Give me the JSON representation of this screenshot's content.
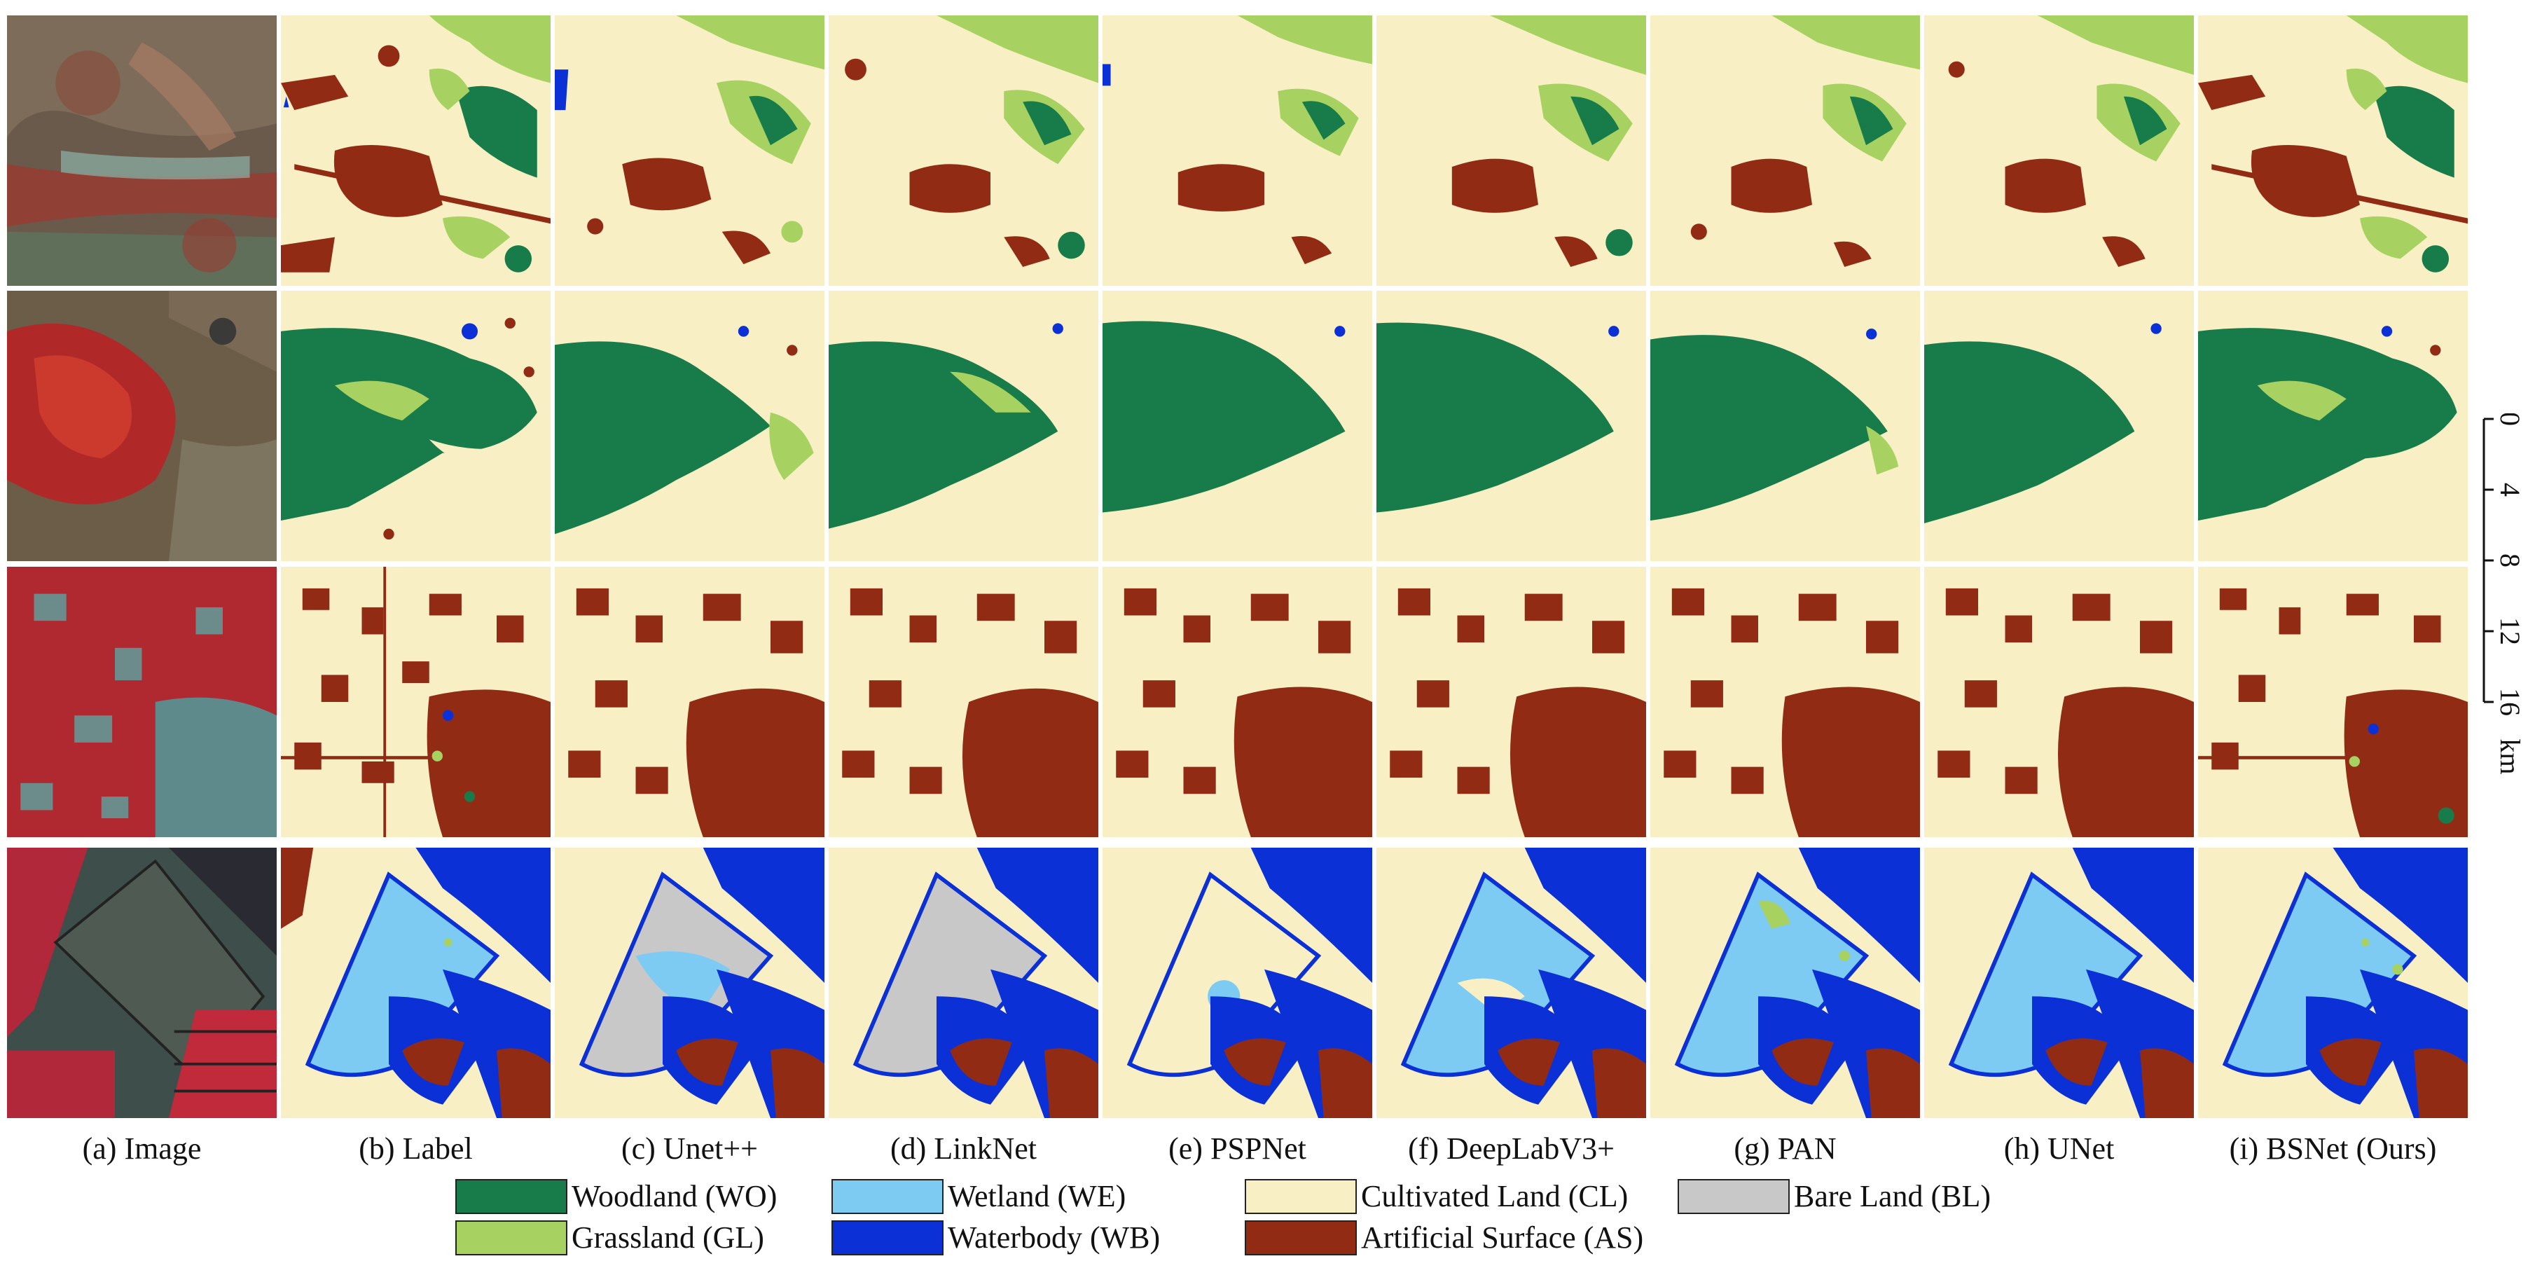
{
  "figure": {
    "column_labels": [
      "(a) Image",
      "(b) Label",
      "(c) Unet++",
      "(d) LinkNet",
      "(e) PSPNet",
      "(f) DeepLabV3+",
      "(g) PAN",
      "(h) UNet",
      "(i) BSNet (Ours)"
    ]
  },
  "scale_bar": {
    "ticks": [
      "0",
      "4",
      "8",
      "12",
      "16"
    ],
    "unit": "km"
  },
  "legend": {
    "items": [
      {
        "label": "Woodland (WO)",
        "color": "#177c4a"
      },
      {
        "label": "Wetland (WE)",
        "color": "#7dcbf3"
      },
      {
        "label": "Cultivated Land (CL)",
        "color": "#f8f0c4"
      },
      {
        "label": "Bare Land (BL)",
        "color": "#c8c8c8"
      },
      {
        "label": "Grassland (GL)",
        "color": "#a7d161"
      },
      {
        "label": "Waterbody (WB)",
        "color": "#0b31d6"
      },
      {
        "label": "Artificial Surface (AS)",
        "color": "#912b14"
      }
    ]
  },
  "colors": {
    "woodland": "#177c4a",
    "grassland": "#a7d161",
    "wetland": "#7dcbf3",
    "waterbody": "#0b31d6",
    "cultivated": "#f8f0c4",
    "bare": "#c8c8c8",
    "artificial": "#912b14"
  }
}
